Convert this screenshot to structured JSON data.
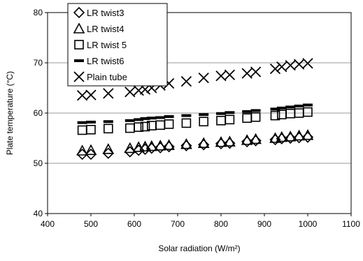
{
  "chart_data": {
    "type": "scatter",
    "title": "",
    "xlabel": "Solar radiation (W/m²)",
    "ylabel": "Plate temperature (°C)",
    "xlim": [
      400,
      1100
    ],
    "ylim": [
      40,
      80
    ],
    "xticks": [
      400,
      500,
      600,
      700,
      800,
      900,
      1000,
      1100
    ],
    "yticks": [
      40,
      50,
      60,
      70,
      80
    ],
    "xtick_labels": [
      "400",
      "500",
      "600",
      "700",
      "800",
      "900",
      "1000",
      "1100"
    ],
    "ytick_labels": [
      "40",
      "50",
      "60",
      "70",
      "80"
    ],
    "grid": "horizontal",
    "legend_position": "top-left",
    "series": [
      {
        "name": "LR twist3",
        "marker": "diamond",
        "x": [
          480,
          500,
          540,
          590,
          610,
          625,
          640,
          660,
          680,
          720,
          760,
          800,
          820,
          860,
          880,
          925,
          940,
          960,
          980,
          1000
        ],
        "y": [
          51.8,
          51.8,
          52.0,
          52.3,
          52.6,
          52.8,
          53.0,
          53.1,
          53.3,
          53.5,
          53.7,
          53.9,
          54.0,
          54.3,
          54.5,
          54.7,
          54.9,
          55.0,
          55.1,
          55.2
        ]
      },
      {
        "name": "LR twist4",
        "marker": "triangle",
        "x": [
          480,
          500,
          540,
          590,
          610,
          625,
          640,
          660,
          680,
          720,
          760,
          800,
          820,
          860,
          880,
          925,
          940,
          960,
          980,
          1000
        ],
        "y": [
          52.5,
          52.6,
          52.8,
          53.0,
          53.2,
          53.3,
          53.4,
          53.5,
          53.6,
          53.8,
          54.0,
          54.2,
          54.3,
          54.6,
          54.8,
          55.0,
          55.2,
          55.3,
          55.5,
          55.6
        ]
      },
      {
        "name": "LR twist 5",
        "marker": "square",
        "x": [
          480,
          500,
          540,
          590,
          610,
          625,
          640,
          660,
          680,
          720,
          760,
          800,
          820,
          860,
          880,
          925,
          940,
          960,
          980,
          1000
        ],
        "y": [
          56.6,
          56.7,
          56.9,
          57.0,
          57.2,
          57.3,
          57.5,
          57.6,
          57.8,
          58.0,
          58.3,
          58.5,
          58.7,
          59.0,
          59.2,
          59.5,
          59.7,
          59.9,
          60.0,
          60.2
        ]
      },
      {
        "name": "LR twist6",
        "marker": "dash",
        "x": [
          480,
          500,
          540,
          590,
          610,
          625,
          640,
          660,
          680,
          720,
          760,
          800,
          820,
          860,
          880,
          925,
          940,
          960,
          980,
          1000
        ],
        "y": [
          58.1,
          58.2,
          58.3,
          58.5,
          58.7,
          58.9,
          59.0,
          59.1,
          59.3,
          59.5,
          59.7,
          59.9,
          60.1,
          60.3,
          60.5,
          60.8,
          61.0,
          61.2,
          61.4,
          61.6
        ]
      },
      {
        "name": "Plain tube",
        "marker": "cross",
        "x": [
          480,
          500,
          540,
          590,
          610,
          625,
          640,
          660,
          680,
          720,
          760,
          800,
          820,
          860,
          880,
          925,
          940,
          960,
          980,
          1000
        ],
        "y": [
          63.5,
          63.6,
          63.9,
          64.2,
          64.5,
          64.7,
          65.0,
          65.5,
          65.9,
          66.3,
          67.0,
          67.4,
          67.6,
          67.9,
          68.2,
          68.8,
          69.2,
          69.5,
          69.7,
          69.9
        ]
      }
    ]
  }
}
